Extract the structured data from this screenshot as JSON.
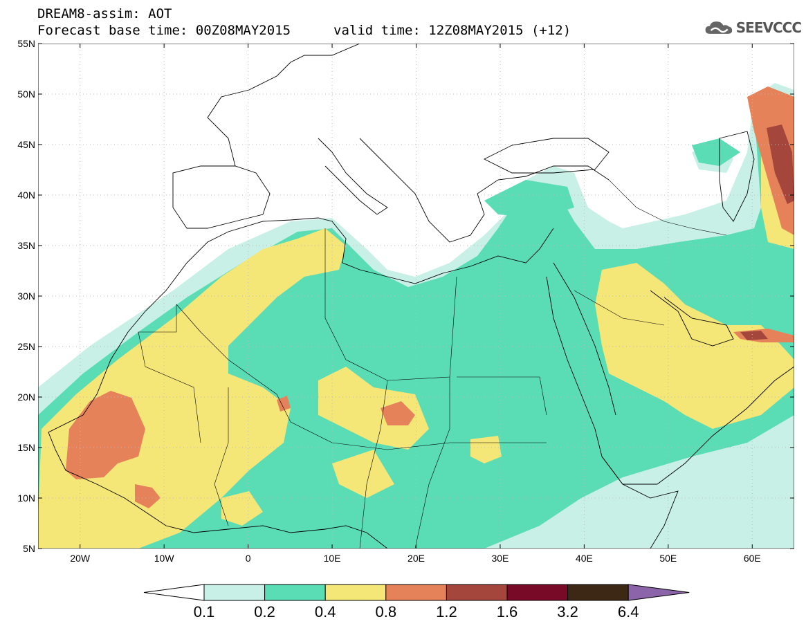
{
  "header": {
    "title": "DREAM8-assim: AOT",
    "base_time": "Forecast base time: 00Z08MAY2015",
    "valid_time": "valid time: 12Z08MAY2015 (+12)"
  },
  "logo": {
    "icon": "cloud-icon",
    "text": "SEEVCCC"
  },
  "map": {
    "lat_labels": [
      "55N",
      "50N",
      "45N",
      "40N",
      "35N",
      "30N",
      "25N",
      "20N",
      "15N",
      "10N",
      "5N"
    ],
    "lon_labels": [
      "20W",
      "10W",
      "0",
      "10E",
      "20E",
      "30E",
      "40E",
      "50E",
      "60E"
    ]
  },
  "colorbar": {
    "labels": [
      "0.1",
      "0.2",
      "0.4",
      "0.8",
      "1.2",
      "1.6",
      "3.2",
      "6.4"
    ],
    "colors": [
      "#ffffff",
      "#c8f0e6",
      "#5adcb4",
      "#f5e678",
      "#e6825a",
      "#a5463c",
      "#780a28",
      "#3c2814",
      "#8c64aa"
    ]
  },
  "colors": {
    "c01": "#c8f0e6",
    "c02": "#5adcb4",
    "c04": "#f5e678",
    "c08": "#e6825a",
    "c12": "#a5463c",
    "c16": "#780a28"
  }
}
